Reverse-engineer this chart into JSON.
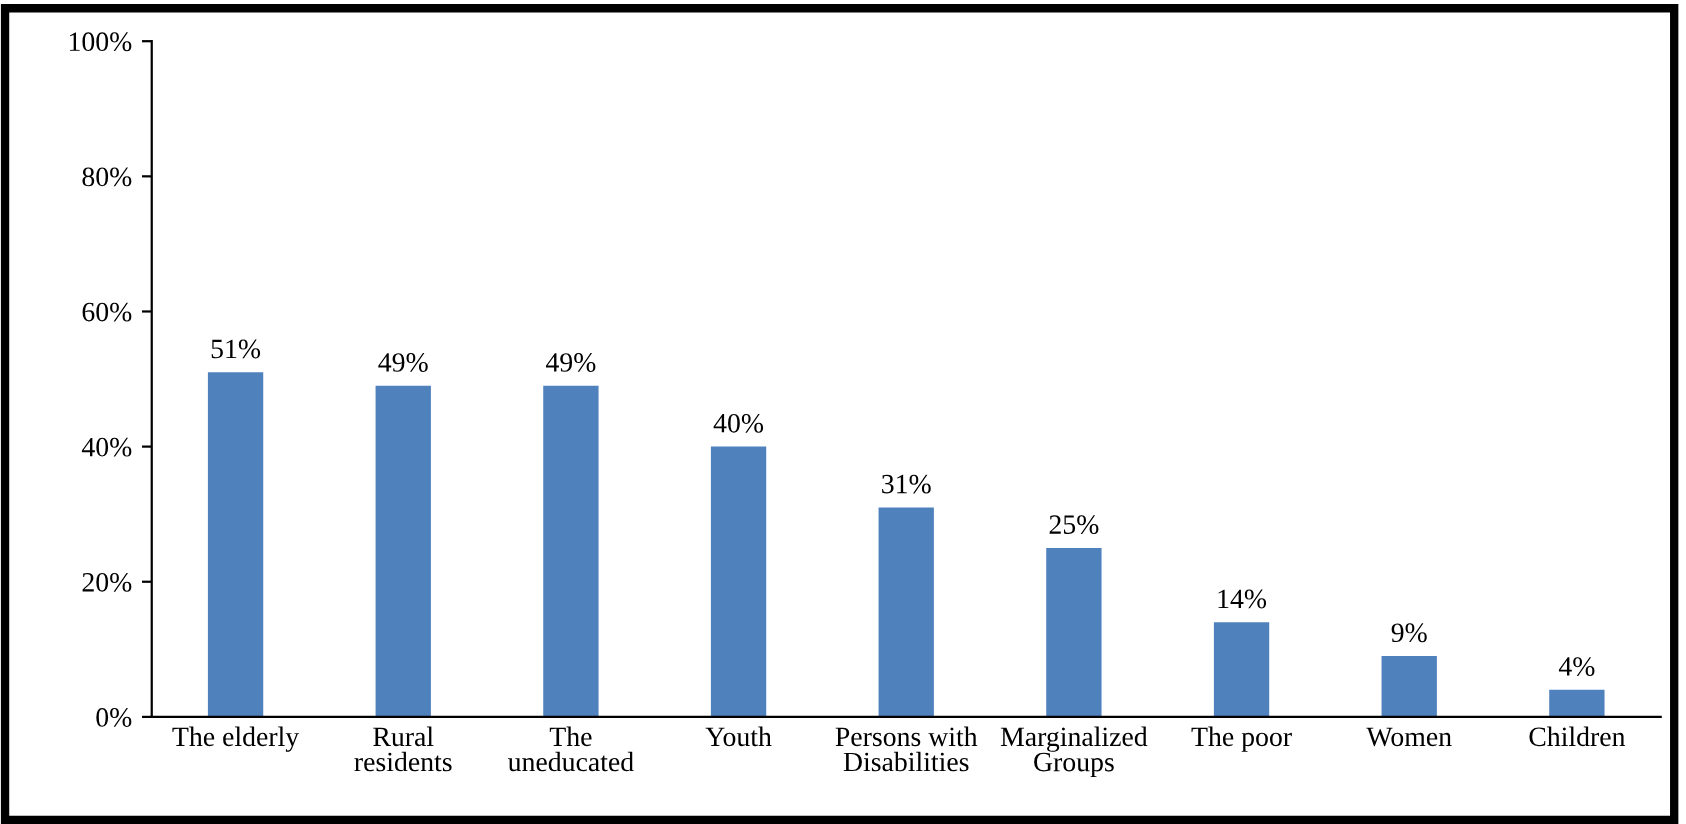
{
  "chart_data": {
    "type": "bar",
    "categories": [
      "The elderly",
      "Rural\nresidents",
      "The\nuneducated",
      "Youth",
      "Persons with\nDisabilities",
      "Marginalized\nGroups",
      "The poor",
      "Women",
      "Children"
    ],
    "values": [
      51,
      49,
      49,
      40,
      31,
      25,
      14,
      9,
      4
    ],
    "value_labels": [
      "51%",
      "49%",
      "49%",
      "40%",
      "31%",
      "25%",
      "14%",
      "9%",
      "4%"
    ],
    "color": "#4f81bd",
    "ylim": [
      0,
      100
    ],
    "yticks": [
      {
        "value": 0,
        "label": "0%"
      },
      {
        "value": 20,
        "label": "20%"
      },
      {
        "value": 40,
        "label": "40%"
      },
      {
        "value": 60,
        "label": "60%"
      },
      {
        "value": 80,
        "label": "80%"
      },
      {
        "value": 100,
        "label": "100%"
      }
    ],
    "grid": false,
    "legend": false
  }
}
